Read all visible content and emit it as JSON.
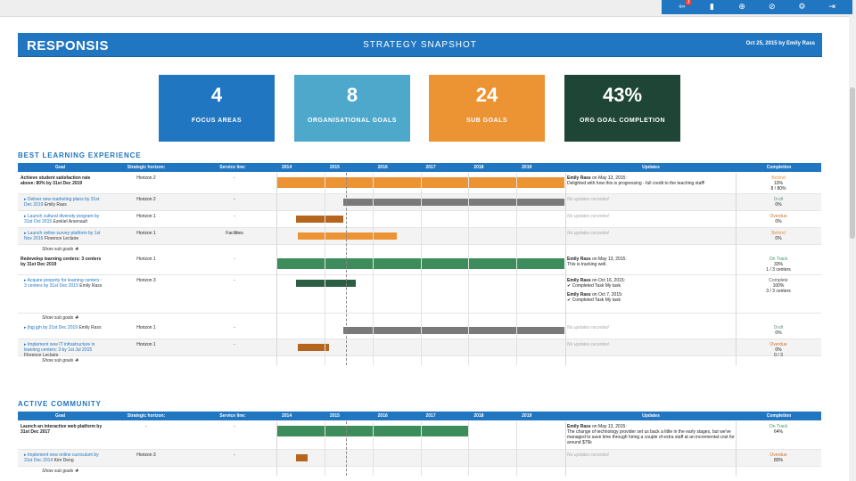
{
  "toolbar": {
    "icons": [
      {
        "name": "notifications-icon",
        "glyph": "⇦",
        "badge": "3"
      },
      {
        "name": "book-icon",
        "glyph": "▮"
      },
      {
        "name": "help-icon",
        "glyph": "⊕"
      },
      {
        "name": "compass-icon",
        "glyph": "⊘"
      },
      {
        "name": "gear-icon",
        "glyph": "⚙"
      },
      {
        "name": "logout-icon",
        "glyph": "⇥"
      }
    ]
  },
  "header": {
    "logo": "RESPONSIS",
    "title": "STRATEGY SNAPSHOT",
    "date": "Oct 25, 2015 by Emily Rass"
  },
  "kpis": [
    {
      "value": "4",
      "label": "FOCUS AREAS",
      "color": "#2176c1"
    },
    {
      "value": "8",
      "label": "ORGANISATIONAL GOALS",
      "color": "#4ea8cc"
    },
    {
      "value": "24",
      "label": "SUB GOALS",
      "color": "#ec9334"
    },
    {
      "value": "43%",
      "label": "ORG GOAL COMPLETION",
      "color": "#1e4535"
    }
  ],
  "columns": {
    "goal": "Goal",
    "horizon": "Strategic horizon:",
    "service": "Service line:",
    "years": [
      "2014",
      "2015",
      "2016",
      "2017",
      "2018",
      "2019"
    ],
    "updates": "Updates",
    "completion": "Completion"
  },
  "colors": {
    "orange": "#ec9334",
    "grey": "#7a7a7a",
    "brown": "#b5651d",
    "green": "#3d8c5c",
    "darkgreen": "#2b5e43"
  },
  "sections": [
    {
      "title": "BEST LEARNING EXPERIENCE",
      "rows": [
        {
          "kind": "goal",
          "text": "Achieve student satisfaction rate above: 80% by 31st Dec 2019",
          "horizon": "Horizon 2",
          "service": "-",
          "bar": {
            "start": 2014.0,
            "end": 2020.0,
            "color": "orange"
          },
          "updates": [
            {
              "author": "Emily Rass",
              "when": " on May 13, 2015:",
              "text": "Delighted with how this is progressing - full credit to the teaching staff!"
            }
          ],
          "completion": [
            "Behind",
            "10%",
            "8 / 80%"
          ],
          "status": "behind"
        },
        {
          "kind": "sub",
          "link": "Deliver new marketing plans by 31st Dec 2019",
          "owner": "Emily Rass",
          "horizon": "Horizon 2",
          "service": "-",
          "bar": {
            "start": 2015.4,
            "end": 2020.0,
            "color": "grey"
          },
          "none": "No updates recorded",
          "completion": [
            "Draft",
            "0%"
          ],
          "status": "draft"
        },
        {
          "kind": "sub",
          "link": "Launch cultural diversity program by 31st Oct 2015",
          "owner": "Ezekiel Arsenault",
          "horizon": "Horizon 1",
          "service": "-",
          "bar": {
            "start": 2014.4,
            "end": 2015.4,
            "color": "brown"
          },
          "none": "No updates recorded",
          "completion": [
            "Overdue",
            "0%"
          ],
          "status": "overdue"
        },
        {
          "kind": "sub",
          "link": "Launch online survey platform by 1st Nov 2016",
          "owner": "Florence Leclaire",
          "horizon": "Horizon 1",
          "service": "Facilities",
          "bar": {
            "start": 2014.45,
            "end": 2016.5,
            "color": "orange"
          },
          "none": "No updates recorded",
          "completion": [
            "Behind",
            "0%"
          ],
          "status": "behind"
        },
        {
          "kind": "showsub",
          "text": "Show sub goals ✚"
        },
        {
          "kind": "goal",
          "text": "Redevelop learning centers: 3 centers by 31st Dec 2019",
          "horizon": "Horizon 1",
          "service": "-",
          "bar": {
            "start": 2014.0,
            "end": 2020.0,
            "color": "green"
          },
          "updates": [
            {
              "author": "Emily Rass",
              "when": " on May 13, 2015:",
              "text": "This is tracking well."
            }
          ],
          "completion": [
            "On Track",
            "33%",
            "1 / 3 centers"
          ],
          "status": "ontrack"
        },
        {
          "kind": "sub",
          "link": "Acquire property for learning centers : 3 centers by 31st Dec 2015",
          "owner": "Emily Rass",
          "horizon": "Horizon 3",
          "service": "-",
          "bar": {
            "start": 2014.4,
            "end": 2015.65,
            "color": "darkgreen"
          },
          "updates": [
            {
              "author": "Emily Rass",
              "when": " on Oct 16, 2015:",
              "text": "✔ Completed Task My task"
            },
            {
              "author": "Emily Rass",
              "when": " on Oct 7, 2015:",
              "text": "✔ Completed Task My task"
            }
          ],
          "completion": [
            "Complete",
            "100%",
            "3 / 3 centers"
          ],
          "status": "complete"
        },
        {
          "kind": "showsub",
          "text": "Show sub goals ✚"
        },
        {
          "kind": "sub",
          "link": "jhgj jgh by 31st Dec 2019",
          "owner": "Emily Rass",
          "horizon": "Horizon 1",
          "service": "-",
          "bar": {
            "start": 2015.4,
            "end": 2020.0,
            "color": "grey"
          },
          "none": "No updates recorded",
          "completion": [
            "Draft",
            "0%"
          ],
          "status": "draft"
        },
        {
          "kind": "sub",
          "link": "Implement new IT infrastructure in learning centers: 3 by 1st Jul 2015",
          "owner": "Florence Leclaire",
          "horizon": "Horizon 1",
          "service": "-",
          "bar": {
            "start": 2014.45,
            "end": 2015.1,
            "color": "brown"
          },
          "none": "No updates recorded",
          "completion": [
            "Overdue",
            "0%",
            "0 / 3"
          ],
          "status": "overdue"
        },
        {
          "kind": "showsub",
          "text": "Show sub goals ✚"
        }
      ]
    },
    {
      "title": "ACTIVE COMMUNITY",
      "rows": [
        {
          "kind": "goal",
          "text": "Launch an interactive web platform by 31st Dec 2017",
          "horizon": "-",
          "service": "-",
          "bar": {
            "start": 2014.0,
            "end": 2018.0,
            "color": "green"
          },
          "updates": [
            {
              "author": "Emily Rass",
              "when": " on May 13, 2015:",
              "text": "The change of technology provider set us back a little in the early stages, but we've managed to save time through hiring a couple of extra staff at an incremental cost for around $75k"
            }
          ],
          "completion": [
            "On Track",
            "64%"
          ],
          "status": "ontrack"
        },
        {
          "kind": "sub",
          "link": "Implement new online curriculum by 31st Dec 2014",
          "owner": "Kim Deng",
          "horizon": "Horizon 3",
          "service": "-",
          "bar": {
            "start": 2014.4,
            "end": 2014.65,
            "color": "brown"
          },
          "none": "No updates recorded",
          "completion": [
            "Overdue",
            "80%"
          ],
          "status": "overdue"
        },
        {
          "kind": "showsub",
          "text": "Show sub goals ✚"
        }
      ]
    }
  ]
}
